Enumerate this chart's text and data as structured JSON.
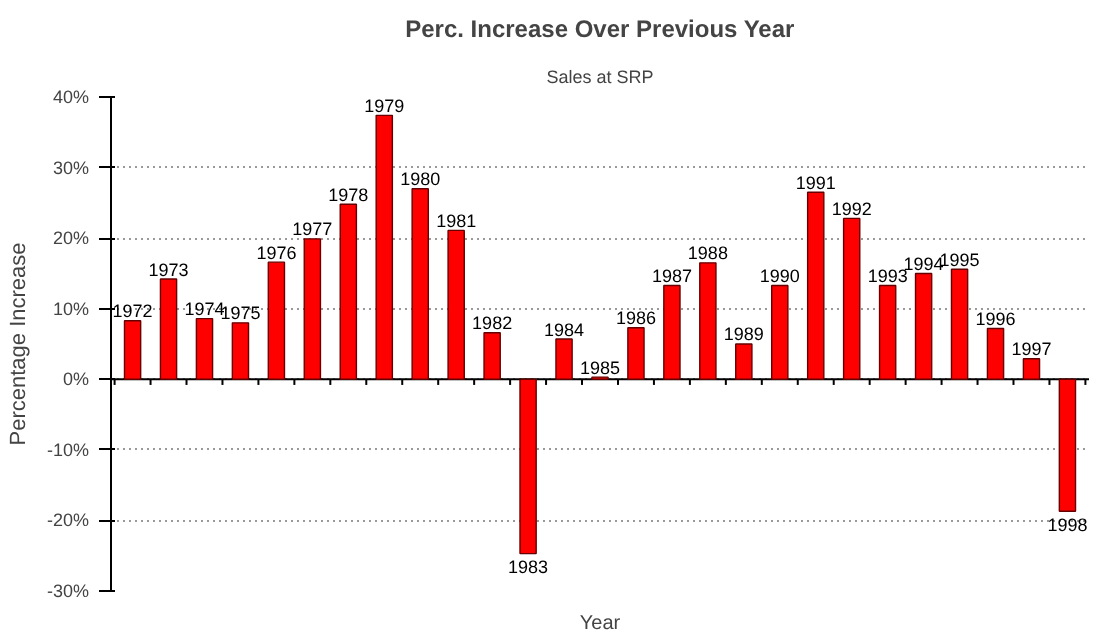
{
  "chart_data": {
    "type": "bar",
    "title": "Perc. Increase Over Previous Year",
    "subtitle": "Sales at SRP",
    "xlabel": "Year",
    "ylabel": "Percentage Increase",
    "categories": [
      "1972",
      "1973",
      "1974",
      "1975",
      "1976",
      "1977",
      "1978",
      "1979",
      "1980",
      "1981",
      "1982",
      "1983",
      "1984",
      "1985",
      "1986",
      "1987",
      "1988",
      "1989",
      "1990",
      "1991",
      "1992",
      "1993",
      "1994",
      "1995",
      "1996",
      "1997",
      "1998"
    ],
    "values": [
      8.3,
      14.2,
      8.6,
      8.0,
      16.6,
      19.9,
      24.8,
      37.4,
      27.0,
      21.1,
      6.6,
      -24.7,
      5.7,
      0.3,
      7.3,
      13.3,
      16.5,
      5.0,
      13.3,
      26.5,
      22.8,
      13.3,
      15.0,
      15.6,
      7.2,
      2.9,
      -18.7
    ],
    "color": "#ff0000",
    "ylim": [
      -30,
      40
    ],
    "yticks": [
      {
        "value": -30,
        "label": "-30%"
      },
      {
        "value": -20,
        "label": "-20%"
      },
      {
        "value": -10,
        "label": "-10%"
      },
      {
        "value": 0,
        "label": "0%"
      },
      {
        "value": 10,
        "label": "10%"
      },
      {
        "value": 20,
        "label": "20%"
      },
      {
        "value": 30,
        "label": "30%"
      },
      {
        "value": 40,
        "label": "40%"
      }
    ],
    "grid": "y"
  }
}
